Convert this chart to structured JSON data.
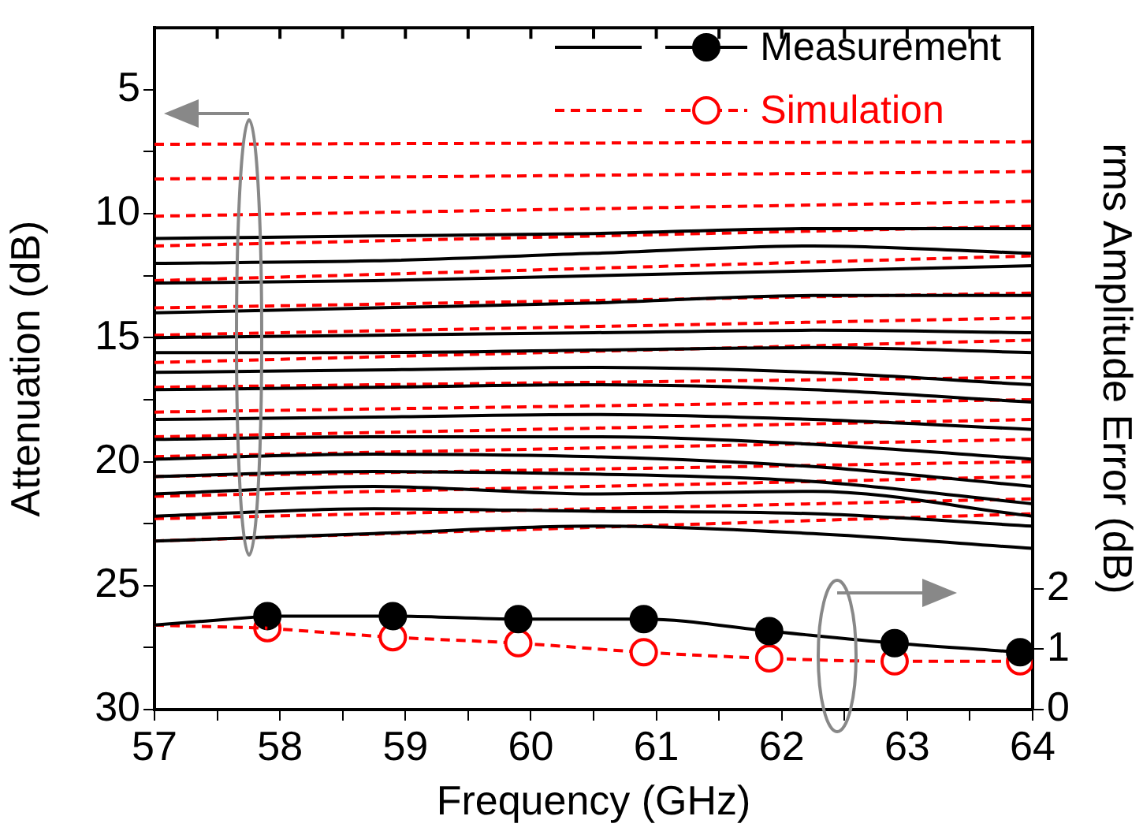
{
  "chart_data": {
    "type": "line",
    "xlabel": "Frequency (GHz)",
    "ylabel": "Attenuation (dB)",
    "y2label": "rms Amplitude Error (dB)",
    "xlim": [
      57,
      64
    ],
    "xticks": [
      57,
      {
        "value": 57.5,
        "label": null
      },
      58,
      {
        "value": 58.5,
        "label": null
      },
      59,
      {
        "value": 59.5,
        "label": null
      },
      60,
      {
        "value": 60.5,
        "label": null
      },
      61,
      {
        "value": 61.5,
        "label": null
      },
      62,
      {
        "value": 62.5,
        "label": null
      },
      63,
      {
        "value": 63.5,
        "label": null
      },
      64
    ],
    "ylim": [
      30,
      2.5
    ],
    "yticks": [
      5,
      {
        "value": 7.5,
        "label": null
      },
      10,
      {
        "value": 12.5,
        "label": null
      },
      15,
      {
        "value": 17.5,
        "label": null
      },
      20,
      {
        "value": 22.5,
        "label": null
      },
      25,
      {
        "value": 27.5,
        "label": null
      },
      30
    ],
    "y2lim": [
      0,
      11.3
    ],
    "y2ticks": [
      0,
      1,
      2
    ],
    "grid": false,
    "legend": "top right",
    "series": [
      {
        "color": "#000000",
        "line_style": "solid",
        "marker": "none",
        "x": [
          57,
          58.75,
          60.5,
          62.25,
          64
        ],
        "values": [
          11.0,
          10.9,
          10.8,
          10.6,
          10.6
        ]
      },
      {
        "color": "#000000",
        "line_style": "solid",
        "marker": "none",
        "x": [
          57,
          58.75,
          60.5,
          62.25,
          64
        ],
        "values": [
          12.0,
          11.9,
          11.6,
          11.3,
          11.6
        ]
      },
      {
        "color": "#000000",
        "line_style": "solid",
        "marker": "none",
        "x": [
          57,
          58.75,
          60.5,
          62.25,
          64
        ],
        "values": [
          12.8,
          12.7,
          12.5,
          12.3,
          12.1
        ]
      },
      {
        "color": "#000000",
        "line_style": "solid",
        "marker": "none",
        "x": [
          57,
          58.75,
          60.5,
          62.25,
          64
        ],
        "values": [
          14.0,
          13.8,
          13.6,
          13.3,
          13.3
        ]
      },
      {
        "color": "#000000",
        "line_style": "solid",
        "marker": "none",
        "x": [
          57,
          58.75,
          60.5,
          62.25,
          64
        ],
        "values": [
          15.0,
          14.9,
          14.8,
          14.7,
          14.8
        ]
      },
      {
        "color": "#000000",
        "line_style": "solid",
        "marker": "none",
        "x": [
          57,
          58.75,
          60.5,
          62.25,
          64
        ],
        "values": [
          15.6,
          15.6,
          15.5,
          15.4,
          15.6
        ]
      },
      {
        "color": "#000000",
        "line_style": "solid",
        "marker": "none",
        "x": [
          57,
          58.75,
          60.5,
          62.25,
          64
        ],
        "values": [
          16.4,
          16.3,
          16.2,
          16.4,
          16.9
        ]
      },
      {
        "color": "#000000",
        "line_style": "solid",
        "marker": "none",
        "x": [
          57,
          58.75,
          60.5,
          62.25,
          64
        ],
        "values": [
          17.1,
          17.0,
          16.9,
          17.1,
          17.6
        ]
      },
      {
        "color": "#000000",
        "line_style": "solid",
        "marker": "none",
        "x": [
          57,
          58.75,
          60.5,
          62.25,
          64
        ],
        "values": [
          18.3,
          18.2,
          18.1,
          18.3,
          18.7
        ]
      },
      {
        "color": "#000000",
        "line_style": "solid",
        "marker": "none",
        "x": [
          57,
          58.75,
          60.5,
          62.25,
          64
        ],
        "values": [
          19.1,
          19.0,
          19.0,
          19.3,
          19.9
        ]
      },
      {
        "color": "#000000",
        "line_style": "solid",
        "marker": "none",
        "x": [
          57,
          58.75,
          60.5,
          62.25,
          64
        ],
        "values": [
          19.9,
          19.7,
          19.8,
          20.2,
          21.0
        ]
      },
      {
        "color": "#000000",
        "line_style": "solid",
        "marker": "none",
        "x": [
          57,
          58.75,
          60.5,
          62.25,
          64
        ],
        "values": [
          20.6,
          20.4,
          20.5,
          20.8,
          21.7
        ]
      },
      {
        "color": "#000000",
        "line_style": "solid",
        "marker": "none",
        "x": [
          57,
          58.75,
          60.5,
          62.25,
          64
        ],
        "values": [
          21.3,
          21.0,
          21.3,
          21.2,
          22.2
        ]
      },
      {
        "color": "#000000",
        "line_style": "solid",
        "marker": "none",
        "x": [
          57,
          58.75,
          60.5,
          62.25,
          64
        ],
        "values": [
          22.2,
          21.9,
          22.0,
          22.1,
          22.6
        ]
      },
      {
        "color": "#000000",
        "line_style": "solid",
        "marker": "none",
        "x": [
          57,
          58.75,
          60.5,
          62.25,
          64
        ],
        "values": [
          23.2,
          22.9,
          22.6,
          22.9,
          23.5
        ]
      },
      {
        "color": "#ff0000",
        "line_style": "dashed",
        "marker": "none",
        "x": [
          57,
          64
        ],
        "values": [
          7.2,
          7.1
        ]
      },
      {
        "color": "#ff0000",
        "line_style": "dashed",
        "marker": "none",
        "x": [
          57,
          64
        ],
        "values": [
          8.6,
          8.3
        ]
      },
      {
        "color": "#ff0000",
        "line_style": "dashed",
        "marker": "none",
        "x": [
          57,
          64
        ],
        "values": [
          10.1,
          9.5
        ]
      },
      {
        "color": "#ff0000",
        "line_style": "dashed",
        "marker": "none",
        "x": [
          57,
          64
        ],
        "values": [
          11.3,
          10.5
        ]
      },
      {
        "color": "#ff0000",
        "line_style": "dashed",
        "marker": "none",
        "x": [
          57,
          64
        ],
        "values": [
          12.7,
          11.7
        ]
      },
      {
        "color": "#ff0000",
        "line_style": "dashed",
        "marker": "none",
        "x": [
          57,
          64
        ],
        "values": [
          13.8,
          13.2
        ]
      },
      {
        "color": "#ff0000",
        "line_style": "dashed",
        "marker": "none",
        "x": [
          57,
          64
        ],
        "values": [
          14.9,
          14.2
        ]
      },
      {
        "color": "#ff0000",
        "line_style": "dashed",
        "marker": "none",
        "x": [
          57,
          64
        ],
        "values": [
          16.0,
          15.1
        ]
      },
      {
        "color": "#ff0000",
        "line_style": "dashed",
        "marker": "none",
        "x": [
          57,
          64
        ],
        "values": [
          17.0,
          16.6
        ]
      },
      {
        "color": "#ff0000",
        "line_style": "dashed",
        "marker": "none",
        "x": [
          57,
          64
        ],
        "values": [
          18.0,
          17.5
        ]
      },
      {
        "color": "#ff0000",
        "line_style": "dashed",
        "marker": "none",
        "x": [
          57,
          64
        ],
        "values": [
          19.0,
          18.3
        ]
      },
      {
        "color": "#ff0000",
        "line_style": "dashed",
        "marker": "none",
        "x": [
          57,
          64
        ],
        "values": [
          19.8,
          19.1
        ]
      },
      {
        "color": "#ff0000",
        "line_style": "dashed",
        "marker": "none",
        "x": [
          57,
          64
        ],
        "values": [
          20.6,
          20.0
        ]
      },
      {
        "color": "#ff0000",
        "line_style": "dashed",
        "marker": "none",
        "x": [
          57,
          64
        ],
        "values": [
          21.4,
          20.6
        ]
      },
      {
        "color": "#ff0000",
        "line_style": "dashed",
        "marker": "none",
        "x": [
          57,
          64
        ],
        "values": [
          22.3,
          21.5
        ]
      },
      {
        "color": "#ff0000",
        "line_style": "dashed",
        "marker": "none",
        "x": [
          57,
          64
        ],
        "values": [
          23.2,
          22.1
        ]
      },
      {
        "color": "#000000",
        "line_style": "solid",
        "axis": "y2",
        "x": [
          57,
          57.9
        ],
        "values": [
          1.4,
          1.55
        ]
      },
      {
        "color": "#ff0000",
        "line_style": "dashed",
        "axis": "y2",
        "x": [
          57,
          57.9
        ],
        "values": [
          1.4,
          1.35
        ]
      },
      {
        "name": "Measurement",
        "color": "#000000",
        "line_style": "solid",
        "marker": "circle",
        "axis": "y2",
        "x": [
          57.9,
          58.9,
          59.9,
          60.9,
          61.9,
          62.9,
          63.9
        ],
        "values": [
          1.55,
          1.55,
          1.5,
          1.5,
          1.3,
          1.1,
          0.95
        ]
      },
      {
        "name": "Simulation",
        "color": "#ff0000",
        "line_style": "dashed",
        "marker": "circle",
        "axis": "y2",
        "x": [
          57.9,
          58.9,
          59.9,
          60.9,
          61.9,
          62.9,
          63.9
        ],
        "values": [
          1.35,
          1.2,
          1.1,
          0.95,
          0.85,
          0.8,
          0.8
        ]
      }
    ]
  }
}
